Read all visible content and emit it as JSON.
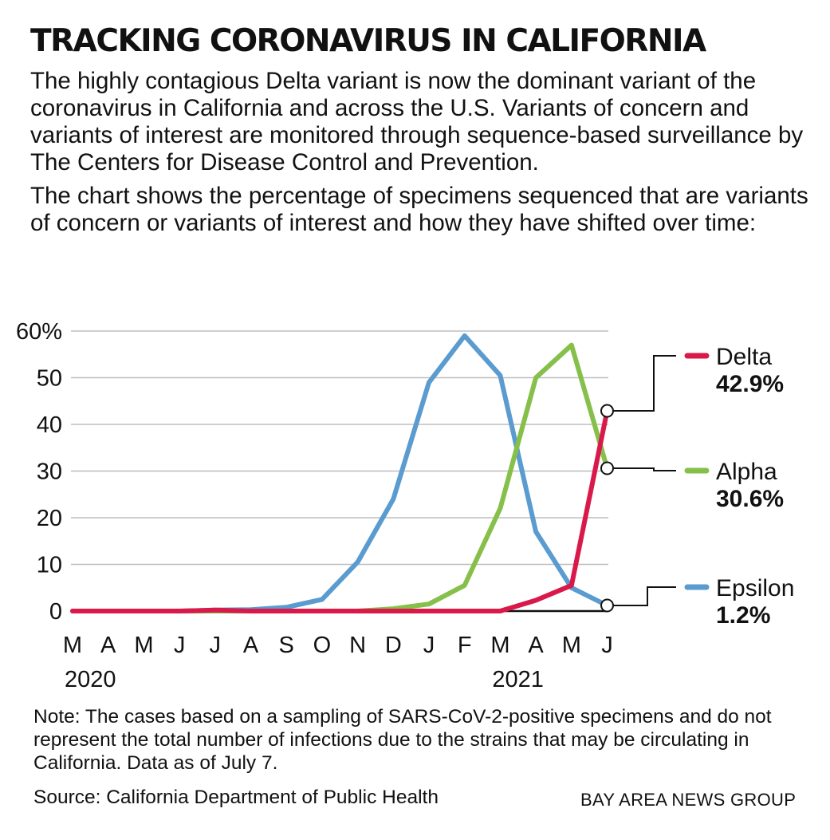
{
  "header": {
    "title": "TRACKING CORONAVIRUS IN CALIFORNIA",
    "intro_1": "The highly contagious Delta variant is now the dominant variant of the coronavirus in California and across the U.S. Variants of concern and variants of interest are monitored through sequence-based surveillance by The Centers for Disease Control and Prevention.",
    "intro_2": "The chart shows the percentage of specimens sequenced that are variants of concern or variants of interest and how they have shifted over time:"
  },
  "chart_data": {
    "type": "line",
    "x": [
      "M",
      "A",
      "M",
      "J",
      "J",
      "A",
      "S",
      "O",
      "N",
      "D",
      "J",
      "F",
      "M",
      "A",
      "M",
      "J"
    ],
    "year_labels": [
      "2020",
      "2021"
    ],
    "ylim": [
      0,
      60
    ],
    "yticks": [
      "60%",
      "50",
      "40",
      "30",
      "20",
      "10",
      "0"
    ],
    "grid": true,
    "legend_position": "right",
    "series": [
      {
        "name": "Delta",
        "label": "42.9%",
        "color": "#d8194a",
        "values": [
          0,
          0,
          0,
          0,
          0.2,
          0,
          0,
          0,
          0,
          0,
          0,
          0,
          0,
          2.3,
          5.5,
          42.9
        ]
      },
      {
        "name": "Alpha",
        "label": "30.6%",
        "color": "#86c04a",
        "values": [
          0,
          0,
          0,
          0,
          0,
          0,
          0,
          0,
          0,
          0.5,
          1.5,
          5.5,
          22,
          50,
          57,
          30.6
        ]
      },
      {
        "name": "Epsilon",
        "label": "1.2%",
        "color": "#5a9bd0",
        "values": [
          0,
          0,
          0,
          0,
          0.2,
          0.3,
          0.8,
          2.5,
          10.5,
          24,
          49,
          59,
          50.5,
          17,
          5,
          1.2
        ]
      }
    ]
  },
  "footer": {
    "note": "Note: The cases based on a sampling of SARS-CoV-2-positive specimens and do not represent the total number of infections due to the strains that may be circulating in California. Data as of July 7.",
    "source": "Source: California Department of Public Health",
    "credit": "BAY AREA NEWS GROUP"
  }
}
